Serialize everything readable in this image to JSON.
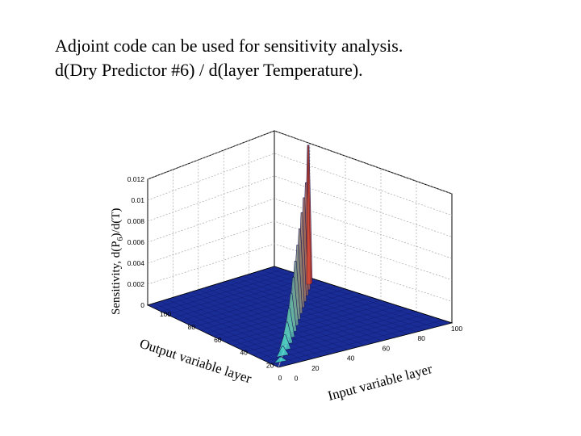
{
  "title_lines": [
    "Adjoint code can be used for sensitivity analysis.",
    "d(Dry Predictor #6) / d(layer Temperature)."
  ],
  "chart_data": {
    "type": "surface",
    "zlabel_main": "Sensitivity, d(P",
    "zlabel_sub": "6",
    "zlabel_end": ")/d(T)",
    "xlabel": "Output variable layer",
    "ylabel": "Input variable layer",
    "xticks": [
      "100",
      "80",
      "60",
      "40",
      "20",
      "0"
    ],
    "yticks": [
      "0",
      "20",
      "40",
      "60",
      "80",
      "100"
    ],
    "zticks": [
      "0",
      "0.002",
      "0.004",
      "0.006",
      "0.008",
      "0.01",
      "0.012"
    ],
    "zlim": [
      0,
      0.012
    ],
    "xlim": [
      0,
      100
    ],
    "ylim": [
      0,
      100
    ],
    "peak": {
      "output_layer": 100,
      "input_layer": 100,
      "value": 0.0123
    },
    "ridge_values": [
      0.0004,
      0.0008,
      0.0013,
      0.0019,
      0.0026,
      0.0034,
      0.0043,
      0.0052,
      0.0061,
      0.007,
      0.0079,
      0.0087,
      0.0095,
      0.0123
    ],
    "colors": {
      "floor": "#1a2d96",
      "floor_grid": "#0d1a6e",
      "ridge_low": "#40e0d0",
      "ridge_high": "#c0392b"
    }
  }
}
